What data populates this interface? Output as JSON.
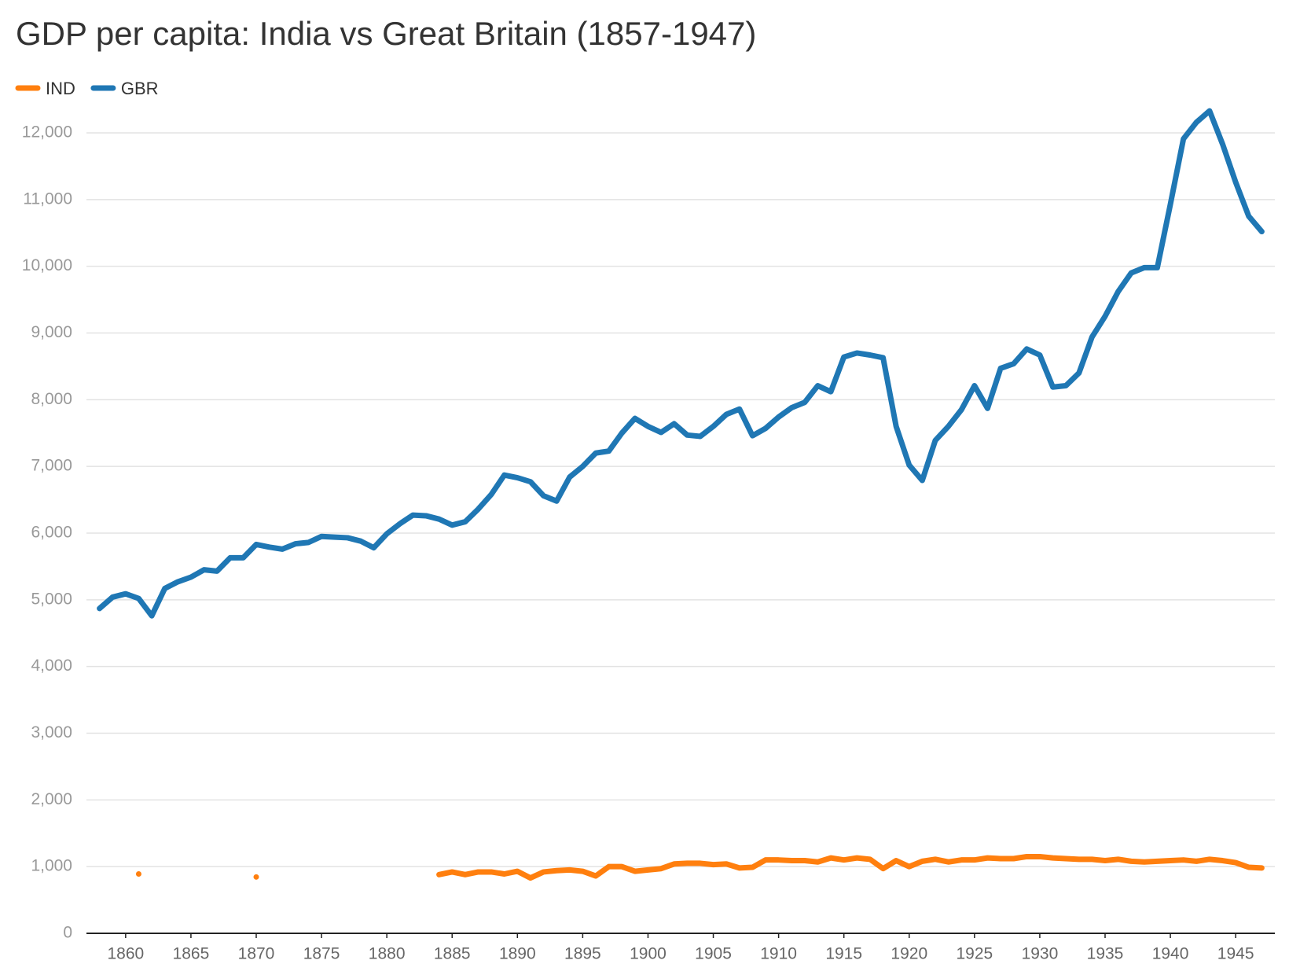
{
  "chart_data": {
    "type": "line",
    "title": "GDP per capita: India vs Great Britain (1857-1947)",
    "x": [
      1858,
      1859,
      1860,
      1861,
      1862,
      1863,
      1864,
      1865,
      1866,
      1867,
      1868,
      1869,
      1870,
      1871,
      1872,
      1873,
      1874,
      1875,
      1876,
      1877,
      1878,
      1879,
      1880,
      1881,
      1882,
      1883,
      1884,
      1885,
      1886,
      1887,
      1888,
      1889,
      1890,
      1891,
      1892,
      1893,
      1894,
      1895,
      1896,
      1897,
      1898,
      1899,
      1900,
      1901,
      1902,
      1903,
      1904,
      1905,
      1906,
      1907,
      1908,
      1909,
      1910,
      1911,
      1912,
      1913,
      1914,
      1915,
      1916,
      1917,
      1918,
      1919,
      1920,
      1921,
      1922,
      1923,
      1924,
      1925,
      1926,
      1927,
      1928,
      1929,
      1930,
      1931,
      1932,
      1933,
      1934,
      1935,
      1936,
      1937,
      1938,
      1939,
      1940,
      1941,
      1942,
      1943,
      1944,
      1945,
      1946,
      1947
    ],
    "series": [
      {
        "name": "IND",
        "color": "#ff7f0e",
        "values": [
          null,
          null,
          null,
          890,
          null,
          null,
          null,
          null,
          null,
          null,
          null,
          null,
          845,
          null,
          null,
          null,
          null,
          null,
          null,
          null,
          null,
          null,
          null,
          null,
          null,
          null,
          880,
          920,
          880,
          920,
          920,
          890,
          930,
          830,
          920,
          940,
          950,
          930,
          860,
          1000,
          1000,
          930,
          950,
          970,
          1040,
          1050,
          1050,
          1030,
          1040,
          980,
          990,
          1100,
          1100,
          1090,
          1090,
          1070,
          1130,
          1100,
          1130,
          1110,
          970,
          1090,
          1000,
          1080,
          1110,
          1070,
          1100,
          1100,
          1130,
          1120,
          1120,
          1150,
          1150,
          1130,
          1120,
          1110,
          1110,
          1090,
          1110,
          1080,
          1070,
          1080,
          1090,
          1100,
          1080,
          1110,
          1090,
          1060,
          990,
          980
        ]
      },
      {
        "name": "GBR",
        "color": "#1f77b4",
        "values": [
          4870,
          5040,
          5090,
          5020,
          4760,
          5170,
          5270,
          5340,
          5450,
          5430,
          5630,
          5630,
          5830,
          5790,
          5760,
          5840,
          5860,
          5950,
          5940,
          5930,
          5880,
          5780,
          5990,
          6140,
          6270,
          6260,
          6210,
          6120,
          6170,
          6360,
          6580,
          6870,
          6830,
          6770,
          6560,
          6480,
          6840,
          7000,
          7200,
          7230,
          7500,
          7720,
          7600,
          7510,
          7640,
          7470,
          7450,
          7600,
          7780,
          7860,
          7460,
          7570,
          7740,
          7880,
          7960,
          8210,
          8120,
          8640,
          8700,
          8670,
          8630,
          7600,
          7020,
          6790,
          7390,
          7600,
          7850,
          8210,
          7870,
          8470,
          8540,
          8760,
          8670,
          8190,
          8210,
          8400,
          8940,
          9250,
          9620,
          9900,
          9980,
          9980,
          10930,
          11910,
          12160,
          12330,
          11830,
          11260,
          10750,
          10520
        ]
      }
    ],
    "xlim": [
      1857,
      1948
    ],
    "xticks": [
      1860,
      1865,
      1870,
      1875,
      1880,
      1885,
      1890,
      1895,
      1900,
      1905,
      1910,
      1915,
      1920,
      1925,
      1930,
      1935,
      1940,
      1945
    ],
    "ylim": [
      0,
      12000
    ],
    "yticks": [
      0,
      {
        "value": 1000,
        "label": "1,000"
      },
      {
        "value": 2000,
        "label": "2,000"
      },
      {
        "value": 3000,
        "label": "3,000"
      },
      {
        "value": 4000,
        "label": "4,000"
      },
      {
        "value": 5000,
        "label": "5,000"
      },
      {
        "value": 6000,
        "label": "6,000"
      },
      {
        "value": 7000,
        "label": "7,000"
      },
      {
        "value": 8000,
        "label": "8,000"
      },
      {
        "value": 9000,
        "label": "9,000"
      },
      {
        "value": 10000,
        "label": "10,000"
      },
      {
        "value": 11000,
        "label": "11,000"
      },
      {
        "value": 12000,
        "label": "12,000"
      }
    ],
    "grid": true,
    "legend": "top-left"
  }
}
